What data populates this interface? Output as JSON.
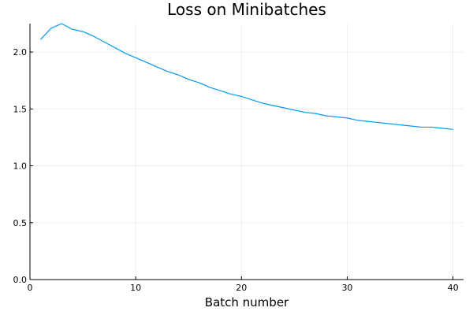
{
  "chart_data": {
    "type": "line",
    "title": "Loss on Minibatches",
    "xlabel": "Batch number",
    "ylabel": "",
    "xlim": [
      0,
      41
    ],
    "ylim": [
      0,
      2.25
    ],
    "xticks": [
      0,
      10,
      20,
      30,
      40
    ],
    "xtick_labels": [
      "0",
      "10",
      "20",
      "30",
      "40"
    ],
    "yticks": [
      0,
      0.5,
      1.0,
      1.5,
      2.0
    ],
    "ytick_labels": [
      "0.0",
      "0.5",
      "1.0",
      "1.5",
      "2.0"
    ],
    "grid": true,
    "legend": "none",
    "series": [
      {
        "name": "loss",
        "color": "#009af9",
        "x": [
          1,
          2,
          3,
          4,
          5,
          6,
          7,
          8,
          9,
          10,
          11,
          12,
          13,
          14,
          15,
          16,
          17,
          18,
          19,
          20,
          21,
          22,
          23,
          24,
          25,
          26,
          27,
          28,
          29,
          30,
          31,
          32,
          33,
          34,
          35,
          36,
          37,
          38,
          39,
          40
        ],
        "values": [
          2.11,
          2.21,
          2.25,
          2.2,
          2.18,
          2.14,
          2.09,
          2.04,
          1.99,
          1.95,
          1.91,
          1.87,
          1.83,
          1.8,
          1.76,
          1.73,
          1.69,
          1.66,
          1.63,
          1.61,
          1.58,
          1.55,
          1.53,
          1.51,
          1.49,
          1.47,
          1.46,
          1.44,
          1.43,
          1.42,
          1.4,
          1.39,
          1.38,
          1.37,
          1.36,
          1.35,
          1.34,
          1.34,
          1.33,
          1.32
        ]
      }
    ]
  }
}
